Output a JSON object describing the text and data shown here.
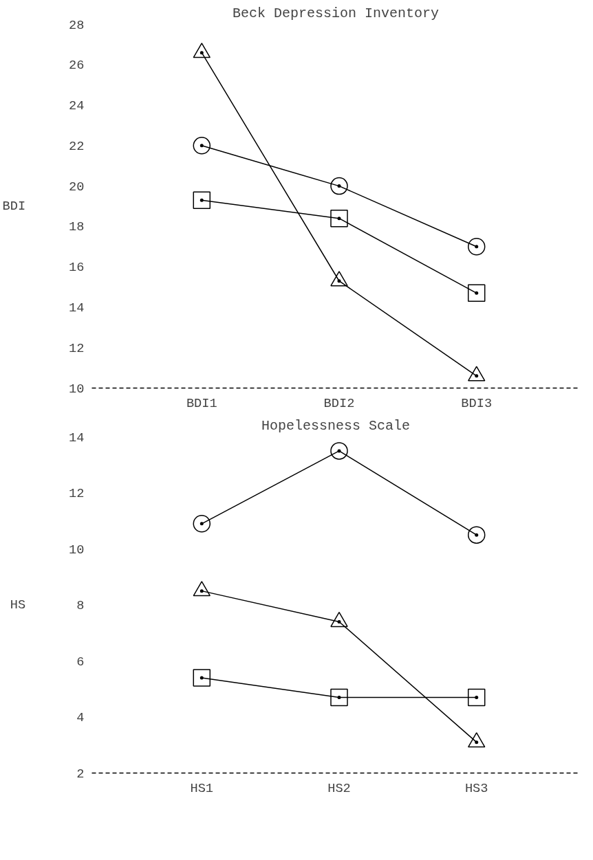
{
  "chart_data": [
    {
      "type": "line",
      "title": "Beck Depression Inventory",
      "ylabel": "BDI",
      "categories": [
        "BDI1",
        "BDI2",
        "BDI3"
      ],
      "ylim": [
        10,
        28
      ],
      "yticks": [
        10,
        12,
        14,
        16,
        18,
        20,
        22,
        24,
        26,
        28
      ],
      "grid": false,
      "series": [
        {
          "color": "#000000",
          "marker": "triangle",
          "values": [
            26.6,
            15.3,
            10.6
          ]
        },
        {
          "color": "#000000",
          "marker": "circle",
          "values": [
            22.0,
            20.0,
            17.0
          ]
        },
        {
          "color": "#000000",
          "marker": "square",
          "values": [
            19.3,
            18.4,
            14.7
          ]
        }
      ]
    },
    {
      "type": "line",
      "title": "Hopelessness Scale",
      "ylabel": "HS",
      "categories": [
        "HS1",
        "HS2",
        "HS3"
      ],
      "ylim": [
        2,
        14
      ],
      "yticks": [
        2,
        4,
        6,
        8,
        10,
        12,
        14
      ],
      "grid": false,
      "series": [
        {
          "color": "#000000",
          "marker": "circle",
          "values": [
            10.9,
            13.5,
            10.5
          ]
        },
        {
          "color": "#000000",
          "marker": "triangle",
          "values": [
            8.5,
            7.4,
            3.1
          ]
        },
        {
          "color": "#000000",
          "marker": "square",
          "values": [
            5.4,
            4.7,
            4.7
          ]
        }
      ]
    }
  ]
}
